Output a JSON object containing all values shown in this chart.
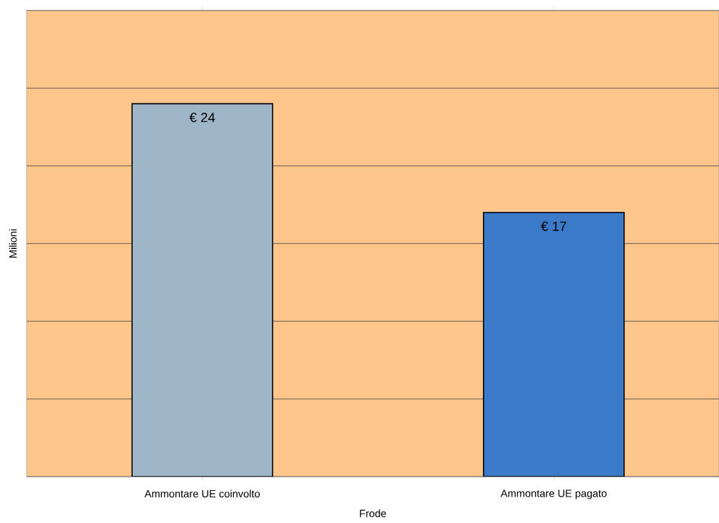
{
  "chart_data": {
    "type": "bar",
    "xlabel": "Frode",
    "ylabel": "Milioni",
    "categories": [
      "Ammontare UE coinvolto",
      "Ammontare UE pagato"
    ],
    "values": [
      24,
      17
    ],
    "colors": [
      "#9fb6c8",
      "#3c7bc9"
    ],
    "value_labels": [
      "€ 24",
      "€ 17"
    ],
    "ylim": [
      0,
      30
    ],
    "yticks": [
      {
        "value": 0,
        "label": null
      },
      {
        "value": 5,
        "label": null
      },
      {
        "value": 10,
        "label": null
      },
      {
        "value": 15,
        "label": null
      },
      {
        "value": 20,
        "label": null
      },
      {
        "value": 25,
        "label": null
      },
      {
        "value": 30,
        "label": null
      }
    ],
    "grid": "y",
    "tick_labels": "x"
  }
}
